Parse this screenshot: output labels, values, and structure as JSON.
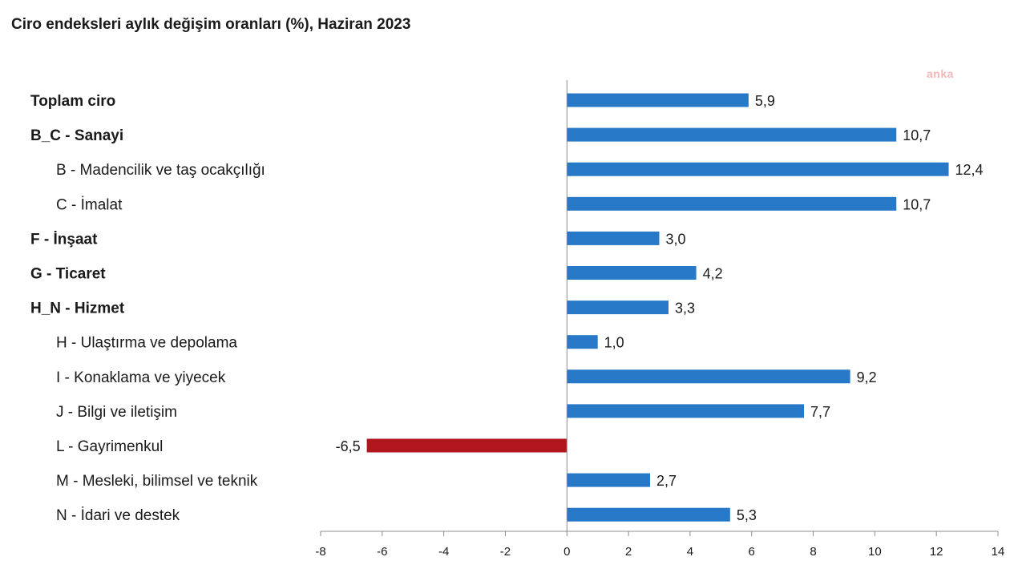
{
  "chart_title": "Ciro endeksleri aylık değişim oranları (%), Haziran 2023",
  "watermark": "anka",
  "colors": {
    "positive": "#2878c8",
    "negative": "#b0161c",
    "axis": "#8c8c8c"
  },
  "chart_data": {
    "type": "bar",
    "orientation": "horizontal",
    "title": "Ciro endeksleri aylık değişim oranları (%), Haziran 2023",
    "xlabel": "",
    "ylabel": "",
    "xlim": [
      -8,
      14
    ],
    "xticks": [
      -8,
      -6,
      -4,
      -2,
      0,
      2,
      4,
      6,
      8,
      10,
      12,
      14
    ],
    "xtick_labels": [
      "-8",
      "-6",
      "-4",
      "-2",
      "0",
      "2",
      "4",
      "6",
      "8",
      "10",
      "12",
      "14"
    ],
    "grid": false,
    "categories": [
      "Toplam ciro",
      "B_C - Sanayi",
      "B - Madencilik ve taş ocakçılığı",
      "C - İmalat",
      "F - İnşaat",
      "G - Ticaret",
      "H_N - Hizmet",
      "H - Ulaştırma ve depolama",
      "I - Konaklama ve yiyecek",
      "J - Bilgi ve iletişim",
      "L - Gayrimenkul",
      "M - Mesleki, bilimsel ve teknik",
      "N - İdari ve destek"
    ],
    "category_bold": [
      true,
      true,
      false,
      false,
      true,
      true,
      true,
      false,
      false,
      false,
      false,
      false,
      false
    ],
    "category_indented": [
      false,
      false,
      true,
      true,
      false,
      false,
      false,
      true,
      true,
      true,
      true,
      true,
      true
    ],
    "values": [
      5.9,
      10.7,
      12.4,
      10.7,
      3.0,
      4.2,
      3.3,
      1.0,
      9.2,
      7.7,
      -6.5,
      2.7,
      5.3
    ],
    "value_labels": [
      "5,9",
      "10,7",
      "12,4",
      "10,7",
      "3,0",
      "4,2",
      "3,3",
      "1,0",
      "9,2",
      "7,7",
      "-6,5",
      "2,7",
      "5,3"
    ]
  }
}
